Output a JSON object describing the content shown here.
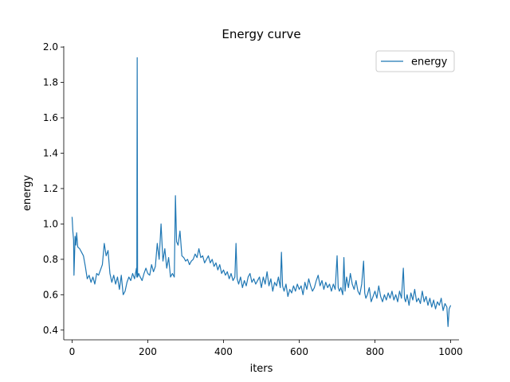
{
  "chart_data": {
    "type": "line",
    "title": "Energy curve",
    "xlabel": "iters",
    "ylabel": "energy",
    "xlim": [
      -22,
      1022
    ],
    "ylim": [
      0.345,
      2.005
    ],
    "xticks": [
      0,
      200,
      400,
      600,
      800,
      1000
    ],
    "yticks": [
      0.4,
      0.6,
      0.8,
      1.0,
      1.2,
      1.4,
      1.6,
      1.8,
      2.0
    ],
    "xtick_labels": [
      "0",
      "200",
      "400",
      "600",
      "800",
      "1000"
    ],
    "ytick_labels": [
      "0.4",
      "0.6",
      "0.8",
      "1.0",
      "1.2",
      "1.4",
      "1.6",
      "1.8",
      "2.0"
    ],
    "legend": {
      "position": "top-right"
    },
    "grid": false,
    "series": [
      {
        "name": "energy",
        "color": "#1f77b4",
        "points": [
          [
            0,
            1.04
          ],
          [
            2,
            0.96
          ],
          [
            4,
            0.91
          ],
          [
            5,
            0.71
          ],
          [
            8,
            0.93
          ],
          [
            10,
            0.88
          ],
          [
            12,
            0.95
          ],
          [
            15,
            0.87
          ],
          [
            20,
            0.86
          ],
          [
            25,
            0.84
          ],
          [
            30,
            0.82
          ],
          [
            35,
            0.76
          ],
          [
            40,
            0.69
          ],
          [
            45,
            0.71
          ],
          [
            50,
            0.67
          ],
          [
            55,
            0.7
          ],
          [
            60,
            0.66
          ],
          [
            65,
            0.72
          ],
          [
            70,
            0.71
          ],
          [
            75,
            0.74
          ],
          [
            80,
            0.77
          ],
          [
            85,
            0.89
          ],
          [
            90,
            0.82
          ],
          [
            95,
            0.85
          ],
          [
            100,
            0.72
          ],
          [
            105,
            0.67
          ],
          [
            110,
            0.71
          ],
          [
            115,
            0.66
          ],
          [
            120,
            0.7
          ],
          [
            125,
            0.63
          ],
          [
            130,
            0.71
          ],
          [
            135,
            0.6
          ],
          [
            140,
            0.62
          ],
          [
            145,
            0.67
          ],
          [
            150,
            0.7
          ],
          [
            155,
            0.68
          ],
          [
            160,
            0.72
          ],
          [
            165,
            0.69
          ],
          [
            170,
            0.75
          ],
          [
            171,
            0.7
          ],
          [
            172,
            1.94
          ],
          [
            173,
            0.7
          ],
          [
            176,
            0.72
          ],
          [
            180,
            0.7
          ],
          [
            185,
            0.68
          ],
          [
            190,
            0.72
          ],
          [
            195,
            0.75
          ],
          [
            200,
            0.72
          ],
          [
            205,
            0.71
          ],
          [
            210,
            0.77
          ],
          [
            215,
            0.73
          ],
          [
            220,
            0.76
          ],
          [
            225,
            0.89
          ],
          [
            230,
            0.8
          ],
          [
            235,
            1.0
          ],
          [
            240,
            0.79
          ],
          [
            245,
            0.86
          ],
          [
            250,
            0.75
          ],
          [
            255,
            0.81
          ],
          [
            260,
            0.7
          ],
          [
            265,
            0.72
          ],
          [
            270,
            0.7
          ],
          [
            273,
            1.16
          ],
          [
            276,
            0.9
          ],
          [
            280,
            0.88
          ],
          [
            285,
            0.96
          ],
          [
            290,
            0.82
          ],
          [
            295,
            0.81
          ],
          [
            300,
            0.79
          ],
          [
            305,
            0.8
          ],
          [
            310,
            0.77
          ],
          [
            315,
            0.79
          ],
          [
            320,
            0.8
          ],
          [
            325,
            0.83
          ],
          [
            330,
            0.81
          ],
          [
            335,
            0.86
          ],
          [
            340,
            0.81
          ],
          [
            345,
            0.82
          ],
          [
            350,
            0.78
          ],
          [
            355,
            0.8
          ],
          [
            360,
            0.82
          ],
          [
            365,
            0.78
          ],
          [
            370,
            0.8
          ],
          [
            375,
            0.76
          ],
          [
            380,
            0.78
          ],
          [
            385,
            0.74
          ],
          [
            390,
            0.77
          ],
          [
            395,
            0.72
          ],
          [
            400,
            0.74
          ],
          [
            405,
            0.71
          ],
          [
            410,
            0.73
          ],
          [
            415,
            0.69
          ],
          [
            420,
            0.72
          ],
          [
            425,
            0.68
          ],
          [
            430,
            0.7
          ],
          [
            433,
            0.89
          ],
          [
            436,
            0.69
          ],
          [
            440,
            0.66
          ],
          [
            445,
            0.7
          ],
          [
            450,
            0.64
          ],
          [
            455,
            0.68
          ],
          [
            460,
            0.65
          ],
          [
            465,
            0.7
          ],
          [
            470,
            0.72
          ],
          [
            475,
            0.67
          ],
          [
            480,
            0.69
          ],
          [
            485,
            0.66
          ],
          [
            490,
            0.68
          ],
          [
            495,
            0.7
          ],
          [
            500,
            0.64
          ],
          [
            505,
            0.7
          ],
          [
            510,
            0.66
          ],
          [
            515,
            0.73
          ],
          [
            520,
            0.65
          ],
          [
            525,
            0.69
          ],
          [
            530,
            0.62
          ],
          [
            535,
            0.67
          ],
          [
            540,
            0.65
          ],
          [
            545,
            0.7
          ],
          [
            550,
            0.64
          ],
          [
            553,
            0.84
          ],
          [
            556,
            0.65
          ],
          [
            560,
            0.62
          ],
          [
            565,
            0.66
          ],
          [
            570,
            0.59
          ],
          [
            575,
            0.63
          ],
          [
            580,
            0.61
          ],
          [
            585,
            0.65
          ],
          [
            590,
            0.62
          ],
          [
            595,
            0.66
          ],
          [
            600,
            0.63
          ],
          [
            605,
            0.65
          ],
          [
            610,
            0.6
          ],
          [
            615,
            0.67
          ],
          [
            620,
            0.63
          ],
          [
            625,
            0.69
          ],
          [
            630,
            0.65
          ],
          [
            635,
            0.62
          ],
          [
            640,
            0.64
          ],
          [
            645,
            0.68
          ],
          [
            650,
            0.71
          ],
          [
            655,
            0.65
          ],
          [
            660,
            0.68
          ],
          [
            665,
            0.63
          ],
          [
            670,
            0.67
          ],
          [
            675,
            0.64
          ],
          [
            680,
            0.66
          ],
          [
            685,
            0.62
          ],
          [
            690,
            0.66
          ],
          [
            695,
            0.63
          ],
          [
            700,
            0.82
          ],
          [
            703,
            0.64
          ],
          [
            706,
            0.62
          ],
          [
            710,
            0.64
          ],
          [
            715,
            0.6
          ],
          [
            718,
            0.81
          ],
          [
            721,
            0.62
          ],
          [
            725,
            0.7
          ],
          [
            730,
            0.64
          ],
          [
            735,
            0.72
          ],
          [
            740,
            0.66
          ],
          [
            745,
            0.63
          ],
          [
            750,
            0.68
          ],
          [
            755,
            0.62
          ],
          [
            760,
            0.6
          ],
          [
            765,
            0.66
          ],
          [
            770,
            0.79
          ],
          [
            773,
            0.61
          ],
          [
            776,
            0.58
          ],
          [
            780,
            0.6
          ],
          [
            785,
            0.64
          ],
          [
            790,
            0.56
          ],
          [
            795,
            0.59
          ],
          [
            800,
            0.62
          ],
          [
            805,
            0.58
          ],
          [
            810,
            0.65
          ],
          [
            815,
            0.59
          ],
          [
            820,
            0.56
          ],
          [
            825,
            0.6
          ],
          [
            830,
            0.57
          ],
          [
            835,
            0.61
          ],
          [
            840,
            0.58
          ],
          [
            845,
            0.62
          ],
          [
            850,
            0.57
          ],
          [
            855,
            0.6
          ],
          [
            860,
            0.56
          ],
          [
            865,
            0.62
          ],
          [
            870,
            0.58
          ],
          [
            875,
            0.75
          ],
          [
            878,
            0.58
          ],
          [
            881,
            0.56
          ],
          [
            885,
            0.6
          ],
          [
            890,
            0.54
          ],
          [
            895,
            0.61
          ],
          [
            900,
            0.57
          ],
          [
            905,
            0.63
          ],
          [
            910,
            0.56
          ],
          [
            915,
            0.58
          ],
          [
            920,
            0.55
          ],
          [
            925,
            0.62
          ],
          [
            930,
            0.56
          ],
          [
            935,
            0.59
          ],
          [
            940,
            0.54
          ],
          [
            945,
            0.58
          ],
          [
            950,
            0.53
          ],
          [
            955,
            0.57
          ],
          [
            960,
            0.52
          ],
          [
            965,
            0.56
          ],
          [
            970,
            0.54
          ],
          [
            975,
            0.58
          ],
          [
            980,
            0.51
          ],
          [
            985,
            0.55
          ],
          [
            990,
            0.53
          ],
          [
            993,
            0.42
          ],
          [
            996,
            0.52
          ],
          [
            1000,
            0.54
          ]
        ]
      }
    ]
  }
}
